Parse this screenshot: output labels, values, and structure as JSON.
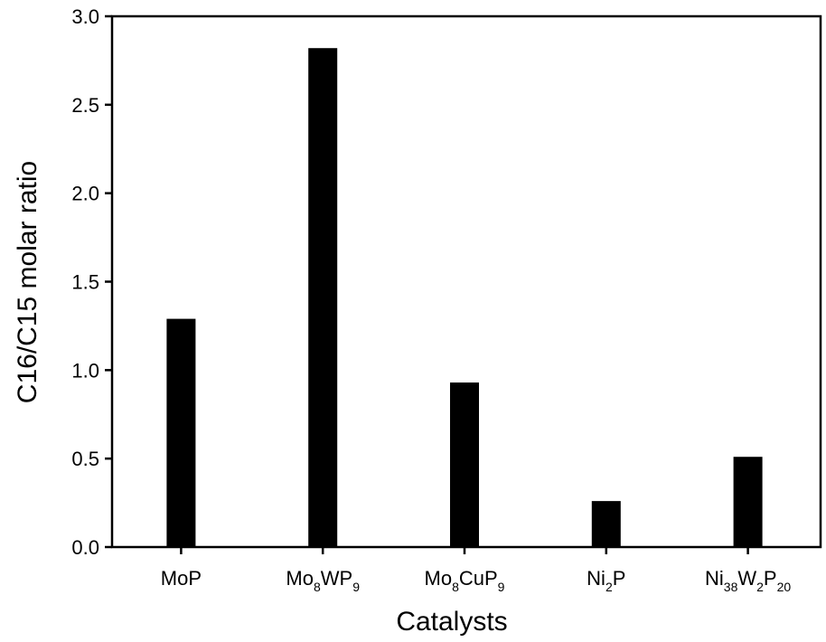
{
  "chart_data": {
    "type": "bar",
    "categories": [
      {
        "parts": [
          {
            "t": "MoP"
          }
        ]
      },
      {
        "parts": [
          {
            "t": "Mo"
          },
          {
            "t": "8",
            "sub": true
          },
          {
            "t": "WP"
          },
          {
            "t": "9",
            "sub": true
          }
        ]
      },
      {
        "parts": [
          {
            "t": "Mo"
          },
          {
            "t": "8",
            "sub": true
          },
          {
            "t": "CuP"
          },
          {
            "t": "9",
            "sub": true
          }
        ]
      },
      {
        "parts": [
          {
            "t": "Ni"
          },
          {
            "t": "2",
            "sub": true
          },
          {
            "t": "P"
          }
        ]
      },
      {
        "parts": [
          {
            "t": "Ni"
          },
          {
            "t": "38",
            "sub": true
          },
          {
            "t": "W"
          },
          {
            "t": "2",
            "sub": true
          },
          {
            "t": "P"
          },
          {
            "t": "20",
            "sub": true
          }
        ]
      }
    ],
    "values": [
      1.29,
      2.82,
      0.93,
      0.26,
      0.51
    ],
    "xlabel": "Catalysts",
    "ylabel": "C16/C15 molar ratio",
    "ylim": [
      0,
      3.0
    ],
    "yticks": [
      "0.0",
      "0.5",
      "1.0",
      "1.5",
      "2.0",
      "2.5",
      "3.0"
    ],
    "grid": false,
    "bar_color": "#000000"
  }
}
